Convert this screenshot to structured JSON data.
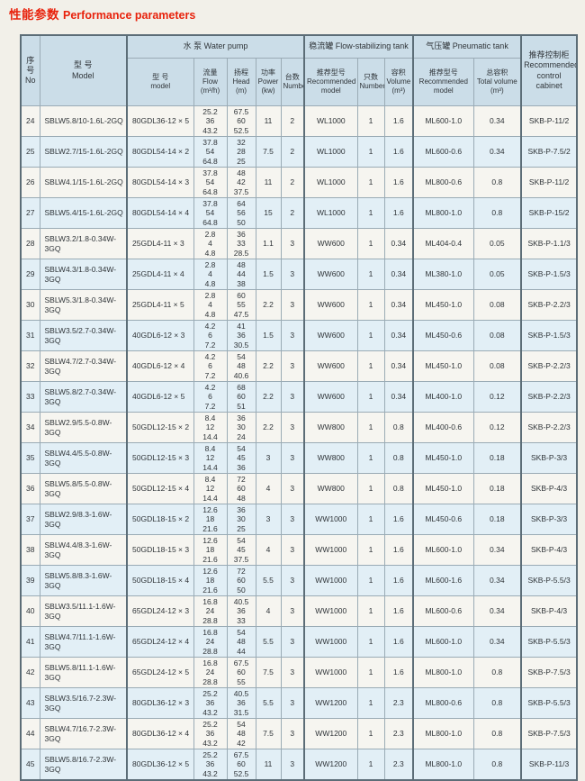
{
  "title": {
    "cn": "性能参数",
    "en": "Performance parameters"
  },
  "colors": {
    "title_red": "#e8220c",
    "header_bg": "#cbdde8",
    "stripe_bg": "#e2eff6",
    "row_bg": "#f6f5f0",
    "grid_line": "#9aabb5",
    "strong_line": "#5c6d77",
    "page_bg": "#f2f0e9"
  },
  "table": {
    "header": {
      "no": "序\n号\nNo",
      "model": "型  号\nModel",
      "group_pump": "水 泵 Water pump",
      "pump_model": "型 号\nmodel",
      "flow": "流量\nFlow\n(m³/h)",
      "head": "扬程\nHead\n(m)",
      "power": "功率\nPower\n(kw)",
      "qty": "台数\nNumber",
      "group_stab": "稳流罐 Flow-stabilizing tank",
      "st_model": "推荐型号\nRecommended\nmodel",
      "st_qty": "只数\nNumber",
      "st_vol": "容积\nVolume\n(m³)",
      "group_pneu": "气压罐 Pneumatic tank",
      "pn_model": "推荐型号\nRecommended\nmodel",
      "pn_vol": "总容积\nTotal volume\n(m³)",
      "cabinet": "推荐控制柜\nRecommended\ncontrol cabinet"
    },
    "column_keys": [
      "no",
      "model",
      "pump",
      "flow",
      "head",
      "power",
      "qty",
      "st_model",
      "st_qty",
      "st_vol",
      "pn_model",
      "pn_vol",
      "cabinet"
    ],
    "rows": [
      {
        "no": "24",
        "model": "SBLW5.8/10-1.6L-2GQ",
        "pump": "80GDL36-12 × 5",
        "flow": "25.2\n36\n43.2",
        "head": "67.5\n60\n52.5",
        "power": "11",
        "qty": "2",
        "st_model": "WL1000",
        "st_qty": "1",
        "st_vol": "1.6",
        "pn_model": "ML600-1.0",
        "pn_vol": "0.34",
        "cabinet": "SKB-P-11/2"
      },
      {
        "no": "25",
        "model": "SBLW2.7/15-1.6L-2GQ",
        "pump": "80GDL54-14 × 2",
        "flow": "37.8\n54\n64.8",
        "head": "32\n28\n25",
        "power": "7.5",
        "qty": "2",
        "st_model": "WL1000",
        "st_qty": "1",
        "st_vol": "1.6",
        "pn_model": "ML600-0.6",
        "pn_vol": "0.34",
        "cabinet": "SKB-P-7.5/2"
      },
      {
        "no": "26",
        "model": "SBLW4.1/15-1.6L-2GQ",
        "pump": "80GDL54-14 × 3",
        "flow": "37.8\n54\n64.8",
        "head": "48\n42\n37.5",
        "power": "11",
        "qty": "2",
        "st_model": "WL1000",
        "st_qty": "1",
        "st_vol": "1.6",
        "pn_model": "ML800-0.6",
        "pn_vol": "0.8",
        "cabinet": "SKB-P-11/2"
      },
      {
        "no": "27",
        "model": "SBLW5.4/15-1.6L-2GQ",
        "pump": "80GDL54-14 × 4",
        "flow": "37.8\n54\n64.8",
        "head": "64\n56\n50",
        "power": "15",
        "qty": "2",
        "st_model": "WL1000",
        "st_qty": "1",
        "st_vol": "1.6",
        "pn_model": "ML800-1.0",
        "pn_vol": "0.8",
        "cabinet": "SKB-P-15/2"
      },
      {
        "no": "28",
        "model": "SBLW3.2/1.8-0.34W-3GQ",
        "pump": "25GDL4-11 × 3",
        "flow": "2.8\n4\n4.8",
        "head": "36\n33\n28.5",
        "power": "1.1",
        "qty": "3",
        "st_model": "WW600",
        "st_qty": "1",
        "st_vol": "0.34",
        "pn_model": "ML404-0.4",
        "pn_vol": "0.05",
        "cabinet": "SKB-P-1.1/3"
      },
      {
        "no": "29",
        "model": "SBLW4.3/1.8-0.34W-3GQ",
        "pump": "25GDL4-11 × 4",
        "flow": "2.8\n4\n4.8",
        "head": "48\n44\n38",
        "power": "1.5",
        "qty": "3",
        "st_model": "WW600",
        "st_qty": "1",
        "st_vol": "0.34",
        "pn_model": "ML380-1.0",
        "pn_vol": "0.05",
        "cabinet": "SKB-P-1.5/3"
      },
      {
        "no": "30",
        "model": "SBLW5.3/1.8-0.34W-3GQ",
        "pump": "25GDL4-11 × 5",
        "flow": "2.8\n4\n4.8",
        "head": "60\n55\n47.5",
        "power": "2.2",
        "qty": "3",
        "st_model": "WW600",
        "st_qty": "1",
        "st_vol": "0.34",
        "pn_model": "ML450-1.0",
        "pn_vol": "0.08",
        "cabinet": "SKB-P-2.2/3"
      },
      {
        "no": "31",
        "model": "SBLW3.5/2.7-0.34W-3GQ",
        "pump": "40GDL6-12 × 3",
        "flow": "4.2\n6\n7.2",
        "head": "41\n36\n30.5",
        "power": "1.5",
        "qty": "3",
        "st_model": "WW600",
        "st_qty": "1",
        "st_vol": "0.34",
        "pn_model": "ML450-0.6",
        "pn_vol": "0.08",
        "cabinet": "SKB-P-1.5/3"
      },
      {
        "no": "32",
        "model": "SBLW4.7/2.7-0.34W-3GQ",
        "pump": "40GDL6-12 × 4",
        "flow": "4.2\n6\n7.2",
        "head": "54\n48\n40.6",
        "power": "2.2",
        "qty": "3",
        "st_model": "WW600",
        "st_qty": "1",
        "st_vol": "0.34",
        "pn_model": "ML450-1.0",
        "pn_vol": "0.08",
        "cabinet": "SKB-P-2.2/3"
      },
      {
        "no": "33",
        "model": "SBLW5.8/2.7-0.34W-3GQ",
        "pump": "40GDL6-12 × 5",
        "flow": "4.2\n6\n7.2",
        "head": "68\n60\n51",
        "power": "2.2",
        "qty": "3",
        "st_model": "WW600",
        "st_qty": "1",
        "st_vol": "0.34",
        "pn_model": "ML400-1.0",
        "pn_vol": "0.12",
        "cabinet": "SKB-P-2.2/3"
      },
      {
        "no": "34",
        "model": "SBLW2.9/5.5-0.8W-3GQ",
        "pump": "50GDL12-15 × 2",
        "flow": "8.4\n12\n14.4",
        "head": "36\n30\n24",
        "power": "2.2",
        "qty": "3",
        "st_model": "WW800",
        "st_qty": "1",
        "st_vol": "0.8",
        "pn_model": "ML400-0.6",
        "pn_vol": "0.12",
        "cabinet": "SKB-P-2.2/3"
      },
      {
        "no": "35",
        "model": "SBLW4.4/5.5-0.8W-3GQ",
        "pump": "50GDL12-15 × 3",
        "flow": "8.4\n12\n14.4",
        "head": "54\n45\n36",
        "power": "3",
        "qty": "3",
        "st_model": "WW800",
        "st_qty": "1",
        "st_vol": "0.8",
        "pn_model": "ML450-1.0",
        "pn_vol": "0.18",
        "cabinet": "SKB-P-3/3"
      },
      {
        "no": "36",
        "model": "SBLW5.8/5.5-0.8W-3GQ",
        "pump": "50GDL12-15 × 4",
        "flow": "8.4\n12\n14.4",
        "head": "72\n60\n48",
        "power": "4",
        "qty": "3",
        "st_model": "WW800",
        "st_qty": "1",
        "st_vol": "0.8",
        "pn_model": "ML450-1.0",
        "pn_vol": "0.18",
        "cabinet": "SKB-P-4/3"
      },
      {
        "no": "37",
        "model": "SBLW2.9/8.3-1.6W-3GQ",
        "pump": "50GDL18-15 × 2",
        "flow": "12.6\n18\n21.6",
        "head": "36\n30\n25",
        "power": "3",
        "qty": "3",
        "st_model": "WW1000",
        "st_qty": "1",
        "st_vol": "1.6",
        "pn_model": "ML450-0.6",
        "pn_vol": "0.18",
        "cabinet": "SKB-P-3/3"
      },
      {
        "no": "38",
        "model": "SBLW4.4/8.3-1.6W-3GQ",
        "pump": "50GDL18-15 × 3",
        "flow": "12.6\n18\n21.6",
        "head": "54\n45\n37.5",
        "power": "4",
        "qty": "3",
        "st_model": "WW1000",
        "st_qty": "1",
        "st_vol": "1.6",
        "pn_model": "ML600-1.0",
        "pn_vol": "0.34",
        "cabinet": "SKB-P-4/3"
      },
      {
        "no": "39",
        "model": "SBLW5.8/8.3-1.6W-3GQ",
        "pump": "50GDL18-15 × 4",
        "flow": "12.6\n18\n21.6",
        "head": "72\n60\n50",
        "power": "5.5",
        "qty": "3",
        "st_model": "WW1000",
        "st_qty": "1",
        "st_vol": "1.6",
        "pn_model": "ML600-1.6",
        "pn_vol": "0.34",
        "cabinet": "SKB-P-5.5/3"
      },
      {
        "no": "40",
        "model": "SBLW3.5/11.1-1.6W-3GQ",
        "pump": "65GDL24-12 × 3",
        "flow": "16.8\n24\n28.8",
        "head": "40.5\n36\n33",
        "power": "4",
        "qty": "3",
        "st_model": "WW1000",
        "st_qty": "1",
        "st_vol": "1.6",
        "pn_model": "ML600-0.6",
        "pn_vol": "0.34",
        "cabinet": "SKB-P-4/3"
      },
      {
        "no": "41",
        "model": "SBLW4.7/11.1-1.6W-3GQ",
        "pump": "65GDL24-12 × 4",
        "flow": "16.8\n24\n28.8",
        "head": "54\n48\n44",
        "power": "5.5",
        "qty": "3",
        "st_model": "WW1000",
        "st_qty": "1",
        "st_vol": "1.6",
        "pn_model": "ML600-1.0",
        "pn_vol": "0.34",
        "cabinet": "SKB-P-5.5/3"
      },
      {
        "no": "42",
        "model": "SBLW5.8/11.1-1.6W-3GQ",
        "pump": "65GDL24-12 × 5",
        "flow": "16.8\n24\n28.8",
        "head": "67.5\n60\n55",
        "power": "7.5",
        "qty": "3",
        "st_model": "WW1000",
        "st_qty": "1",
        "st_vol": "1.6",
        "pn_model": "ML800-1.0",
        "pn_vol": "0.8",
        "cabinet": "SKB-P-7.5/3"
      },
      {
        "no": "43",
        "model": "SBLW3.5/16.7-2.3W-3GQ",
        "pump": "80GDL36-12 × 3",
        "flow": "25.2\n36\n43.2",
        "head": "40.5\n36\n31.5",
        "power": "5.5",
        "qty": "3",
        "st_model": "WW1200",
        "st_qty": "1",
        "st_vol": "2.3",
        "pn_model": "ML800-0.6",
        "pn_vol": "0.8",
        "cabinet": "SKB-P-5.5/3"
      },
      {
        "no": "44",
        "model": "SBLW4.7/16.7-2.3W-3GQ",
        "pump": "80GDL36-12 × 4",
        "flow": "25.2\n36\n43.2",
        "head": "54\n48\n42",
        "power": "7.5",
        "qty": "3",
        "st_model": "WW1200",
        "st_qty": "1",
        "st_vol": "2.3",
        "pn_model": "ML800-1.0",
        "pn_vol": "0.8",
        "cabinet": "SKB-P-7.5/3"
      },
      {
        "no": "45",
        "model": "SBLW5.8/16.7-2.3W-3GQ",
        "pump": "80GDL36-12 × 5",
        "flow": "25.2\n36\n43.2",
        "head": "67.5\n60\n52.5",
        "power": "11",
        "qty": "3",
        "st_model": "WW1200",
        "st_qty": "1",
        "st_vol": "2.3",
        "pn_model": "ML800-1.0",
        "pn_vol": "0.8",
        "cabinet": "SKB-P-11/3"
      }
    ]
  }
}
